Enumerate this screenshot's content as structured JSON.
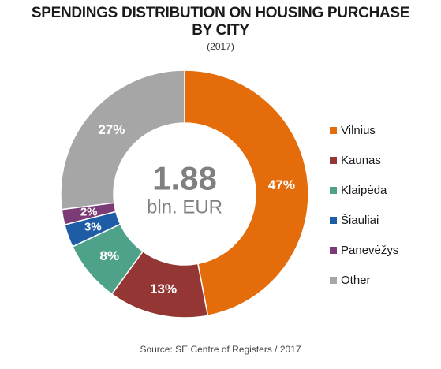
{
  "chart_data": {
    "type": "pie",
    "title_line1": "SPENDINGS DISTRIBUTION ON HOUSING PURCHASE",
    "title_line2": "BY CITY",
    "subtitle": "(2017)",
    "center_value": "1.88",
    "center_unit": "bln. EUR",
    "categories": [
      "Vilnius",
      "Kaunas",
      "Klaipėda",
      "Šiauliai",
      "Panevėžys",
      "Other"
    ],
    "values": [
      47,
      13,
      8,
      3,
      2,
      27
    ],
    "labels": [
      "47%",
      "13%",
      "8%",
      "3%",
      "2%",
      "27%"
    ],
    "colors": [
      "#e46c0a",
      "#943634",
      "#4fa28a",
      "#1f5ca6",
      "#7b3b76",
      "#a6a6a6"
    ],
    "legend_position": "right",
    "source": "Source: SE Centre of Registers / 2017"
  }
}
